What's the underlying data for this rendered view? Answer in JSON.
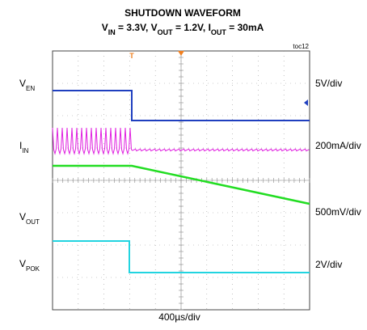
{
  "title": "SHUTDOWN WAVEFORM",
  "subtitle": [
    {
      "text": "V"
    },
    {
      "text": "IN",
      "sub": true
    },
    {
      "text": " = 3.3V, V"
    },
    {
      "text": "OUT",
      "sub": true
    },
    {
      "text": " = 1.2V, I"
    },
    {
      "text": "OUT",
      "sub": true
    },
    {
      "text": " = 30mA"
    }
  ],
  "figure_id": "toc12",
  "channels": [
    {
      "name": "V",
      "sub": "EN",
      "scale": "5V/div"
    },
    {
      "name": "I",
      "sub": "IN",
      "scale": "200mA/div"
    },
    {
      "name": "V",
      "sub": "OUT",
      "scale": "500mV/div"
    },
    {
      "name": "V",
      "sub": "POK",
      "scale": "2V/div"
    }
  ],
  "time_scale": "400µs/div"
}
